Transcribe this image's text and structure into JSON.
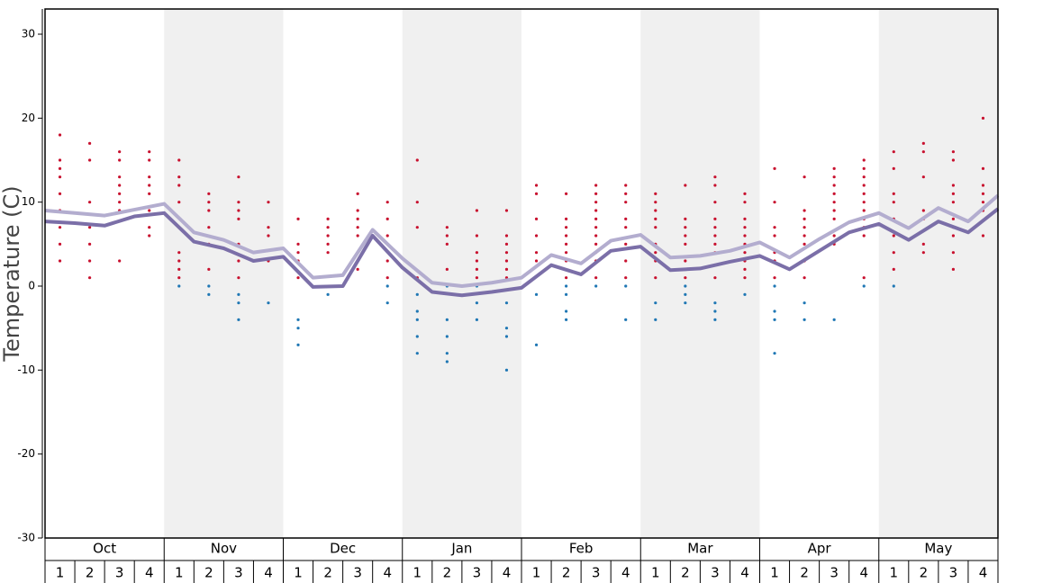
{
  "chart_data": {
    "type": "line",
    "y_label": "Temperature (C)",
    "ylim": [
      -30,
      33
    ],
    "yticks": [
      -30,
      -20,
      -10,
      0,
      10,
      20,
      30
    ],
    "months": [
      "Oct",
      "Nov",
      "Dec",
      "Jan",
      "Feb",
      "Mar",
      "Apr",
      "May"
    ],
    "weeks": [
      "1",
      "2",
      "3",
      "4",
      "1",
      "2",
      "3",
      "4",
      "1",
      "2",
      "3",
      "4",
      "1",
      "2",
      "3",
      "4",
      "1",
      "2",
      "3",
      "4",
      "1",
      "2",
      "3",
      "4",
      "1",
      "2",
      "3",
      "4",
      "1",
      "2",
      "3",
      "4"
    ],
    "shade_color": "#f0f0f0",
    "x": [
      0,
      1,
      2,
      3,
      4,
      5,
      6,
      7,
      8,
      9,
      10,
      11,
      12,
      13,
      14,
      15,
      16,
      17,
      18,
      19,
      20,
      21,
      22,
      23,
      24,
      25,
      26,
      27,
      28,
      29,
      30,
      31,
      32
    ],
    "series": [
      {
        "color": "#b3adcf",
        "values": [
          9,
          8.7,
          8.4,
          9.1,
          9.8,
          6.4,
          5.5,
          4,
          4.5,
          1,
          1.3,
          6.7,
          3.3,
          0.4,
          0,
          0.4,
          1,
          3.7,
          2.7,
          5.4,
          6.1,
          3.4,
          3.6,
          4.2,
          5.2,
          3.4,
          5.6,
          7.6,
          8.7,
          6.9,
          9.3,
          7.7,
          10.8
        ]
      },
      {
        "color": "#7b6fa8",
        "values": [
          7.7,
          7.5,
          7.2,
          8.3,
          8.7,
          5.3,
          4.5,
          3,
          3.5,
          -0.1,
          0,
          6,
          2.2,
          -0.7,
          -1.1,
          -0.7,
          -0.2,
          2.5,
          1.4,
          4.2,
          4.7,
          1.9,
          2.1,
          2.9,
          3.6,
          2,
          4.2,
          6.4,
          7.4,
          5.5,
          7.7,
          6.4,
          9.2
        ]
      }
    ],
    "dots": [
      {
        "color": "#c8102e",
        "values": [
          [
            18,
            15,
            14,
            13,
            11,
            9,
            7,
            5,
            3
          ],
          [
            17,
            15,
            10,
            7,
            5,
            3,
            1
          ],
          [
            16,
            15,
            13,
            12,
            11,
            10,
            9,
            3
          ],
          [
            16,
            15,
            13,
            12,
            11,
            9,
            7,
            6
          ],
          [
            15,
            13,
            12,
            10,
            7,
            4,
            3,
            2,
            1
          ],
          [
            11,
            10,
            9,
            7,
            5,
            2
          ],
          [
            13,
            10,
            9,
            8,
            5,
            3,
            1
          ],
          [
            10,
            7,
            6,
            3
          ],
          [
            8,
            5,
            4,
            3,
            1
          ],
          [
            8,
            7,
            6,
            5,
            4
          ],
          [
            11,
            9,
            8,
            7,
            6,
            4,
            3,
            2
          ],
          [
            10,
            8,
            6,
            5,
            3,
            1
          ],
          [
            15,
            10,
            7,
            1
          ],
          [
            7,
            6,
            5,
            2
          ],
          [
            9,
            6,
            4,
            3,
            2,
            1
          ],
          [
            9,
            6,
            5,
            4,
            3,
            2,
            1
          ],
          [
            12,
            11,
            8,
            6,
            4,
            3
          ],
          [
            11,
            8,
            7,
            6,
            5,
            4,
            3,
            1
          ],
          [
            12,
            11,
            10,
            9,
            8,
            7,
            6,
            5,
            4,
            3,
            1
          ],
          [
            12,
            11,
            10,
            8,
            7,
            5,
            3,
            1
          ],
          [
            11,
            10,
            9,
            8,
            7,
            5,
            4,
            3,
            1
          ],
          [
            12,
            8,
            7,
            6,
            5,
            3,
            2,
            1
          ],
          [
            13,
            12,
            10,
            8,
            7,
            6,
            5,
            4,
            1
          ],
          [
            11,
            10,
            8,
            7,
            6,
            5,
            4,
            3,
            2,
            1
          ],
          [
            14,
            10,
            7,
            6,
            4,
            3,
            1
          ],
          [
            13,
            9,
            8,
            7,
            6,
            5,
            3,
            1
          ],
          [
            14,
            13,
            12,
            11,
            10,
            9,
            8,
            6,
            5
          ],
          [
            15,
            14,
            13,
            12,
            11,
            10,
            9,
            8,
            7,
            6,
            1
          ],
          [
            16,
            14,
            11,
            10,
            8,
            6,
            4,
            2
          ],
          [
            17,
            16,
            13,
            9,
            8,
            5,
            4
          ],
          [
            16,
            15,
            12,
            11,
            10,
            8,
            7,
            6,
            4,
            2
          ],
          [
            20,
            14,
            12,
            11,
            10,
            9,
            6
          ]
        ]
      },
      {
        "color": "#1f77b4",
        "values": [
          [],
          [],
          [],
          [],
          [
            0
          ],
          [
            0,
            -1
          ],
          [
            -1,
            -2,
            -4
          ],
          [
            -2
          ],
          [
            -4,
            -5,
            -7
          ],
          [
            -1
          ],
          [],
          [
            0,
            -2
          ],
          [
            -1,
            -3,
            -4,
            -6,
            -8
          ],
          [
            0,
            -4,
            -6,
            -8,
            -9
          ],
          [
            0,
            -2,
            -4
          ],
          [
            -2,
            -5,
            -6,
            -10
          ],
          [
            -1,
            -7
          ],
          [
            0,
            -1,
            -3,
            -4
          ],
          [
            0
          ],
          [
            0,
            -4
          ],
          [
            -2,
            -4
          ],
          [
            0,
            -1,
            -2
          ],
          [
            -2,
            -3,
            -4
          ],
          [
            -1
          ],
          [
            0,
            -3,
            -4,
            -8
          ],
          [
            -2,
            -4
          ],
          [
            -4
          ],
          [
            0
          ],
          [
            0
          ],
          [],
          [],
          []
        ]
      }
    ]
  }
}
